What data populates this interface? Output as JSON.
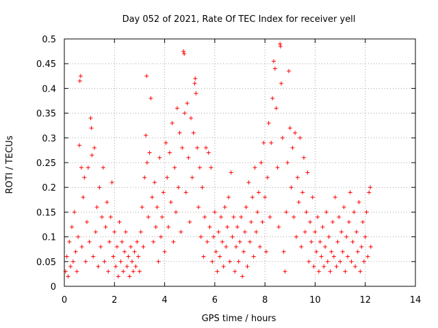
{
  "chart_data": {
    "type": "scatter",
    "title": "Day 052 of 2021, Rate Of TEC Index for receiver yell",
    "xlabel": "GPS time / hours",
    "ylabel": "ROTI / TECUs",
    "xlim": [
      0,
      14
    ],
    "ylim": [
      0,
      0.5
    ],
    "x_ticks": [
      0,
      2,
      4,
      6,
      8,
      10,
      12,
      14
    ],
    "x_tick_labels": [
      "0",
      "2",
      "4",
      "6",
      "8",
      "10",
      "12",
      "14"
    ],
    "y_ticks": [
      0,
      0.05,
      0.1,
      0.15,
      0.2,
      0.25,
      0.3,
      0.35,
      0.4,
      0.45,
      0.5
    ],
    "y_tick_labels": [
      "0",
      "0.05",
      "0.1",
      "0.15",
      "0.2",
      "0.25",
      "0.3",
      "0.35",
      "0.4",
      "0.45",
      "0.5"
    ],
    "grid": true,
    "marker": "+",
    "color": "#ff0000",
    "series": [
      {
        "name": "ROTI",
        "points": [
          [
            0.05,
            0.03
          ],
          [
            0.1,
            0.06
          ],
          [
            0.15,
            0.02
          ],
          [
            0.2,
            0.09
          ],
          [
            0.25,
            0.04
          ],
          [
            0.3,
            0.12
          ],
          [
            0.35,
            0.05
          ],
          [
            0.4,
            0.15
          ],
          [
            0.45,
            0.07
          ],
          [
            0.5,
            0.03
          ],
          [
            0.55,
            0.1
          ],
          [
            0.6,
            0.285
          ],
          [
            0.62,
            0.415
          ],
          [
            0.65,
            0.425
          ],
          [
            0.68,
            0.24
          ],
          [
            0.7,
            0.08
          ],
          [
            0.75,
            0.18
          ],
          [
            0.8,
            0.22
          ],
          [
            0.85,
            0.05
          ],
          [
            0.9,
            0.13
          ],
          [
            0.95,
            0.24
          ],
          [
            1.0,
            0.09
          ],
          [
            1.05,
            0.34
          ],
          [
            1.08,
            0.32
          ],
          [
            1.1,
            0.265
          ],
          [
            1.15,
            0.06
          ],
          [
            1.2,
            0.28
          ],
          [
            1.25,
            0.11
          ],
          [
            1.3,
            0.16
          ],
          [
            1.35,
            0.04
          ],
          [
            1.4,
            0.2
          ],
          [
            1.45,
            0.08
          ],
          [
            1.5,
            0.14
          ],
          [
            1.55,
            0.24
          ],
          [
            1.6,
            0.05
          ],
          [
            1.65,
            0.12
          ],
          [
            1.7,
            0.17
          ],
          [
            1.75,
            0.03
          ],
          [
            1.8,
            0.09
          ],
          [
            1.85,
            0.14
          ],
          [
            1.9,
            0.21
          ],
          [
            1.95,
            0.06
          ],
          [
            2.0,
            0.11
          ],
          [
            2.05,
            0.04
          ],
          [
            2.1,
            0.08
          ],
          [
            2.15,
            0.02
          ],
          [
            2.2,
            0.13
          ],
          [
            2.25,
            0.05
          ],
          [
            2.3,
            0.09
          ],
          [
            2.35,
            0.03
          ],
          [
            2.4,
            0.07
          ],
          [
            2.45,
            0.11
          ],
          [
            2.5,
            0.04
          ],
          [
            2.55,
            0.06
          ],
          [
            2.6,
            0.02
          ],
          [
            2.65,
            0.08
          ],
          [
            2.7,
            0.05
          ],
          [
            2.75,
            0.03
          ],
          [
            2.8,
            0.07
          ],
          [
            2.85,
            0.04
          ],
          [
            2.9,
            0.09
          ],
          [
            2.95,
            0.06
          ],
          [
            3.0,
            0.03
          ],
          [
            3.05,
            0.11
          ],
          [
            3.1,
            0.16
          ],
          [
            3.15,
            0.08
          ],
          [
            3.2,
            0.22
          ],
          [
            3.25,
            0.305
          ],
          [
            3.28,
            0.425
          ],
          [
            3.3,
            0.25
          ],
          [
            3.35,
            0.14
          ],
          [
            3.4,
            0.27
          ],
          [
            3.45,
            0.38
          ],
          [
            3.5,
            0.18
          ],
          [
            3.55,
            0.09
          ],
          [
            3.6,
            0.21
          ],
          [
            3.65,
            0.12
          ],
          [
            3.7,
            0.16
          ],
          [
            3.75,
            0.05
          ],
          [
            3.8,
            0.26
          ],
          [
            3.85,
            0.1
          ],
          [
            3.9,
            0.14
          ],
          [
            3.95,
            0.19
          ],
          [
            4.0,
            0.07
          ],
          [
            4.05,
            0.29
          ],
          [
            4.1,
            0.22
          ],
          [
            4.15,
            0.12
          ],
          [
            4.2,
            0.27
          ],
          [
            4.25,
            0.17
          ],
          [
            4.3,
            0.33
          ],
          [
            4.35,
            0.09
          ],
          [
            4.4,
            0.24
          ],
          [
            4.45,
            0.15
          ],
          [
            4.5,
            0.36
          ],
          [
            4.55,
            0.2
          ],
          [
            4.6,
            0.31
          ],
          [
            4.65,
            0.11
          ],
          [
            4.7,
            0.28
          ],
          [
            4.75,
            0.475
          ],
          [
            4.78,
            0.47
          ],
          [
            4.8,
            0.35
          ],
          [
            4.85,
            0.19
          ],
          [
            4.9,
            0.37
          ],
          [
            4.95,
            0.26
          ],
          [
            5.0,
            0.13
          ],
          [
            5.05,
            0.34
          ],
          [
            5.1,
            0.22
          ],
          [
            5.15,
            0.31
          ],
          [
            5.2,
            0.41
          ],
          [
            5.22,
            0.42
          ],
          [
            5.25,
            0.39
          ],
          [
            5.3,
            0.28
          ],
          [
            5.35,
            0.16
          ],
          [
            5.4,
            0.24
          ],
          [
            5.45,
            0.1
          ],
          [
            5.5,
            0.2
          ],
          [
            5.55,
            0.06
          ],
          [
            5.6,
            0.14
          ],
          [
            5.65,
            0.28
          ],
          [
            5.7,
            0.09
          ],
          [
            5.75,
            0.27
          ],
          [
            5.8,
            0.12
          ],
          [
            5.85,
            0.24
          ],
          [
            5.9,
            0.05
          ],
          [
            5.95,
            0.1
          ],
          [
            6.0,
            0.15
          ],
          [
            6.05,
            0.07
          ],
          [
            6.1,
            0.03
          ],
          [
            6.15,
            0.11
          ],
          [
            6.2,
            0.06
          ],
          [
            6.25,
            0.14
          ],
          [
            6.3,
            0.09
          ],
          [
            6.35,
            0.04
          ],
          [
            6.4,
            0.16
          ],
          [
            6.45,
            0.08
          ],
          [
            6.5,
            0.12
          ],
          [
            6.55,
            0.18
          ],
          [
            6.6,
            0.05
          ],
          [
            6.65,
            0.23
          ],
          [
            6.7,
            0.1
          ],
          [
            6.75,
            0.14
          ],
          [
            6.8,
            0.03
          ],
          [
            6.85,
            0.08
          ],
          [
            6.9,
            0.12
          ],
          [
            6.95,
            0.05
          ],
          [
            7.0,
            0.09
          ],
          [
            7.05,
            0.14
          ],
          [
            7.1,
            0.02
          ],
          [
            7.15,
            0.07
          ],
          [
            7.2,
            0.11
          ],
          [
            7.25,
            0.16
          ],
          [
            7.3,
            0.04
          ],
          [
            7.35,
            0.21
          ],
          [
            7.4,
            0.09
          ],
          [
            7.45,
            0.13
          ],
          [
            7.5,
            0.18
          ],
          [
            7.55,
            0.06
          ],
          [
            7.6,
            0.24
          ],
          [
            7.65,
            0.11
          ],
          [
            7.7,
            0.15
          ],
          [
            7.75,
            0.19
          ],
          [
            7.8,
            0.08
          ],
          [
            7.85,
            0.25
          ],
          [
            7.9,
            0.13
          ],
          [
            7.95,
            0.29
          ],
          [
            8.0,
            0.18
          ],
          [
            8.05,
            0.07
          ],
          [
            8.1,
            0.22
          ],
          [
            8.15,
            0.33
          ],
          [
            8.2,
            0.14
          ],
          [
            8.25,
            0.29
          ],
          [
            8.3,
            0.38
          ],
          [
            8.35,
            0.455
          ],
          [
            8.4,
            0.44
          ],
          [
            8.45,
            0.36
          ],
          [
            8.5,
            0.24
          ],
          [
            8.55,
            0.12
          ],
          [
            8.6,
            0.49
          ],
          [
            8.62,
            0.485
          ],
          [
            8.65,
            0.41
          ],
          [
            8.7,
            0.3
          ],
          [
            8.75,
            0.07
          ],
          [
            8.8,
            0.03
          ],
          [
            8.85,
            0.15
          ],
          [
            8.9,
            0.25
          ],
          [
            8.95,
            0.435
          ],
          [
            9.0,
            0.32
          ],
          [
            9.05,
            0.2
          ],
          [
            9.1,
            0.28
          ],
          [
            9.15,
            0.14
          ],
          [
            9.2,
            0.31
          ],
          [
            9.25,
            0.1
          ],
          [
            9.3,
            0.22
          ],
          [
            9.35,
            0.17
          ],
          [
            9.4,
            0.3
          ],
          [
            9.45,
            0.08
          ],
          [
            9.5,
            0.19
          ],
          [
            9.55,
            0.26
          ],
          [
            9.6,
            0.11
          ],
          [
            9.65,
            0.15
          ],
          [
            9.7,
            0.23
          ],
          [
            9.75,
            0.05
          ],
          [
            9.8,
            0.13
          ],
          [
            9.85,
            0.09
          ],
          [
            9.9,
            0.18
          ],
          [
            9.95,
            0.04
          ],
          [
            10.0,
            0.11
          ],
          [
            10.05,
            0.07
          ],
          [
            10.1,
            0.14
          ],
          [
            10.15,
            0.03
          ],
          [
            10.2,
            0.09
          ],
          [
            10.25,
            0.06
          ],
          [
            10.3,
            0.12
          ],
          [
            10.35,
            0.04
          ],
          [
            10.4,
            0.08
          ],
          [
            10.45,
            0.15
          ],
          [
            10.5,
            0.05
          ],
          [
            10.55,
            0.1
          ],
          [
            10.6,
            0.03
          ],
          [
            10.65,
            0.07
          ],
          [
            10.7,
            0.13
          ],
          [
            10.75,
            0.06
          ],
          [
            10.8,
            0.18
          ],
          [
            10.85,
            0.04
          ],
          [
            10.9,
            0.09
          ],
          [
            10.95,
            0.14
          ],
          [
            11.0,
            0.05
          ],
          [
            11.05,
            0.11
          ],
          [
            11.1,
            0.07
          ],
          [
            11.15,
            0.16
          ],
          [
            11.2,
            0.03
          ],
          [
            11.25,
            0.1
          ],
          [
            11.3,
            0.06
          ],
          [
            11.35,
            0.13
          ],
          [
            11.4,
            0.19
          ],
          [
            11.45,
            0.05
          ],
          [
            11.5,
            0.09
          ],
          [
            11.55,
            0.15
          ],
          [
            11.6,
            0.04
          ],
          [
            11.65,
            0.11
          ],
          [
            11.7,
            0.07
          ],
          [
            11.75,
            0.17
          ],
          [
            11.8,
            0.03
          ],
          [
            11.85,
            0.08
          ],
          [
            11.9,
            0.13
          ],
          [
            11.95,
            0.05
          ],
          [
            12.0,
            0.1
          ],
          [
            12.05,
            0.15
          ],
          [
            12.1,
            0.06
          ],
          [
            12.15,
            0.19
          ],
          [
            12.2,
            0.2
          ],
          [
            12.22,
            0.08
          ]
        ]
      }
    ]
  }
}
